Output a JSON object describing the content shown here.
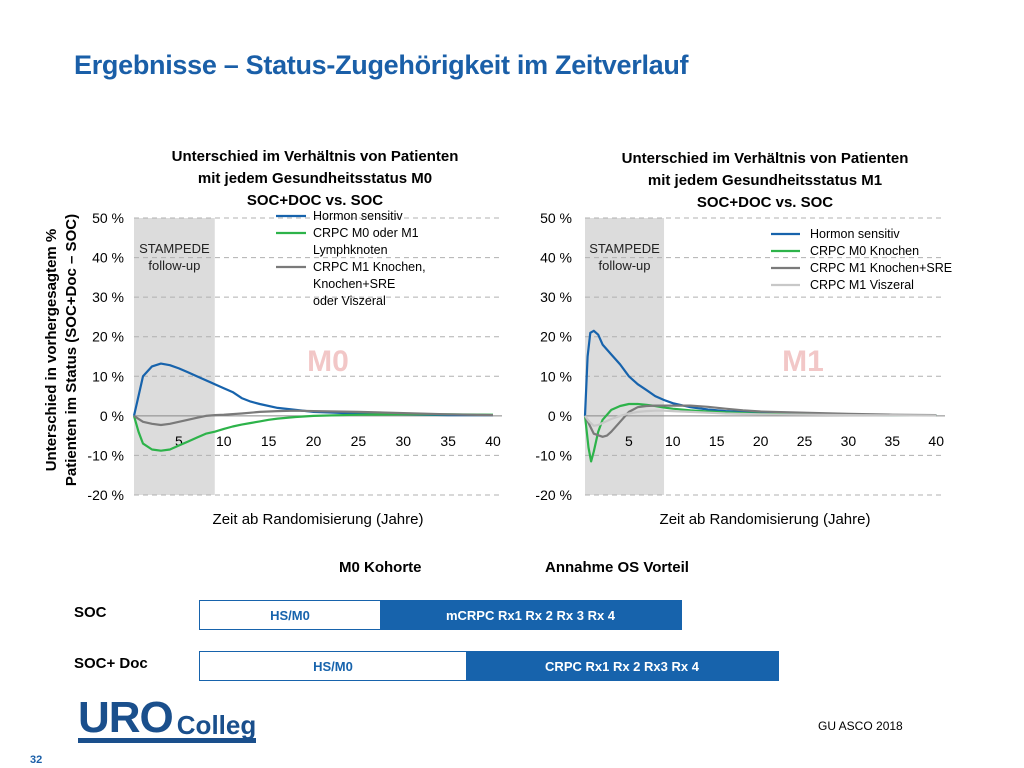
{
  "slide": {
    "title": "Ergebnisse – Status-Zugehörigkeit im Zeitverlauf",
    "y_axis_label_line1": "Unterschied in vorhergesagtem %",
    "y_axis_label_line2": "Patienten im Status (SOC+Doc – SOC)",
    "source": "GU ASCO 2018",
    "page_number": "32",
    "logo": {
      "part1": "URO",
      "part2": "Colleg"
    }
  },
  "colors": {
    "title": "#1a5fa8",
    "hormon": "#1763ac",
    "crpc_m0": "#2db34a",
    "crpc_m1": "#7a7a7a",
    "crpc_m1_visz": "#c8c8c8",
    "watermark": "#f2c7c7",
    "shade": "#dcdcdc",
    "bar_dark": "#1763ac"
  },
  "chart_data": [
    {
      "type": "line",
      "title_lines": [
        "Unterschied im Verhältnis von Patienten",
        "mit jedem Gesundheitsstatus M0",
        "SOC+DOC vs. SOC"
      ],
      "watermark": "M0",
      "shaded_region": {
        "x": [
          0,
          9
        ],
        "label_lines": [
          "STAMPEDE",
          "follow-up"
        ]
      },
      "xlabel": "Zeit ab Randomisierung (Jahre)",
      "xlim": [
        0,
        41
      ],
      "ylim": [
        -20,
        50
      ],
      "xticks": [
        "5",
        "10",
        "15",
        "20",
        "25",
        "30",
        "35",
        "40"
      ],
      "xtick_values": [
        5,
        10,
        15,
        20,
        25,
        30,
        35,
        40
      ],
      "yticks": [
        "50 %",
        "40 %",
        "30 %",
        "20 %",
        "10 %",
        "0 %",
        "-10 %",
        "-20 %"
      ],
      "ytick_values": [
        50,
        40,
        30,
        20,
        10,
        0,
        -10,
        -20
      ],
      "legend_lines": [
        "Hormon sensitiv",
        "CRPC M0 oder M1",
        "Lymphknoten",
        "CRPC M1 Knochen,",
        "Knochen+SRE",
        "oder Viszeral"
      ],
      "series": [
        {
          "name": "Hormon sensitiv",
          "color_key": "hormon",
          "x": [
            0,
            1,
            2,
            3,
            4,
            5,
            6,
            7,
            8,
            9,
            10,
            11,
            12,
            13,
            14,
            16,
            18,
            20,
            25,
            30,
            35,
            40
          ],
          "y": [
            0,
            10,
            12.5,
            13.2,
            12.8,
            12,
            11,
            10,
            9,
            8,
            7,
            6,
            4.5,
            3.6,
            3,
            2,
            1.5,
            1,
            0.6,
            0.4,
            0.2,
            0.2
          ]
        },
        {
          "name": "CRPC M0 oder M1 Lymphknoten",
          "color_key": "crpc_m0",
          "x": [
            0,
            0.5,
            1,
            2,
            3,
            4,
            5,
            6,
            7,
            8,
            9,
            10,
            11,
            12,
            13,
            14,
            15,
            16,
            18,
            20,
            25,
            30,
            35,
            40
          ],
          "y": [
            0,
            -4,
            -7,
            -8.5,
            -8.8,
            -8.5,
            -7.5,
            -6.5,
            -5.5,
            -4.5,
            -4,
            -3.3,
            -2.7,
            -2.2,
            -1.8,
            -1.4,
            -1,
            -0.7,
            -0.3,
            0,
            0.3,
            0.4,
            0.4,
            0.3
          ]
        },
        {
          "name": "CRPC M1 Knochen, Knochen+SRE oder Viszeral",
          "color_key": "crpc_m1",
          "x": [
            0,
            1,
            2,
            3,
            4,
            5,
            6,
            7,
            8,
            9,
            10,
            12,
            14,
            16,
            18,
            20,
            25,
            30,
            35,
            40
          ],
          "y": [
            0,
            -1.5,
            -2,
            -2.3,
            -2,
            -1.5,
            -1,
            -0.5,
            0,
            0.2,
            0.3,
            0.6,
            1,
            1.2,
            1.3,
            1.2,
            1,
            0.7,
            0.4,
            0.2
          ]
        }
      ]
    },
    {
      "type": "line",
      "title_lines": [
        "Unterschied im Verhältnis von Patienten",
        "mit jedem Gesundheitsstatus M1",
        "SOC+DOC vs. SOC"
      ],
      "watermark": "M1",
      "shaded_region": {
        "x": [
          0,
          9
        ],
        "label_lines": [
          "STAMPEDE",
          "follow-up"
        ]
      },
      "xlabel": "Zeit ab Randomisierung (Jahre)",
      "xlim": [
        0,
        41
      ],
      "ylim": [
        -20,
        50
      ],
      "xticks": [
        "5",
        "10",
        "15",
        "20",
        "25",
        "30",
        "35",
        "40"
      ],
      "xtick_values": [
        5,
        10,
        15,
        20,
        25,
        30,
        35,
        40
      ],
      "yticks": [
        "50 %",
        "40 %",
        "30 %",
        "20 %",
        "10 %",
        "0 %",
        "-10 %",
        "-20 %"
      ],
      "ytick_values": [
        50,
        40,
        30,
        20,
        10,
        0,
        -10,
        -20
      ],
      "legend_lines": [
        "Hormon sensitiv",
        "CRPC M0 Knochen",
        "CRPC M1 Knochen+SRE",
        "CRPC M1 Viszeral"
      ],
      "series": [
        {
          "name": "Hormon sensitiv",
          "color_key": "hormon",
          "x": [
            0,
            0.3,
            0.6,
            1,
            1.5,
            2,
            3,
            4,
            5,
            6,
            7,
            8,
            9,
            10,
            12,
            14,
            16,
            18,
            20,
            25,
            30,
            35,
            40
          ],
          "y": [
            0,
            15,
            21,
            21.5,
            20.5,
            18,
            15.5,
            13,
            10,
            8,
            6.5,
            5,
            4,
            3.2,
            2.2,
            1.6,
            1.2,
            1,
            0.8,
            0.5,
            0.3,
            0.2,
            0.2
          ]
        },
        {
          "name": "CRPC M0 Knochen",
          "color_key": "crpc_m0",
          "x": [
            0,
            0.4,
            0.7,
            1,
            1.5,
            2,
            3,
            4,
            5,
            6,
            7,
            8,
            9,
            10,
            12,
            14,
            16,
            18,
            20,
            25,
            30,
            35,
            40
          ],
          "y": [
            0,
            -8,
            -11.5,
            -9,
            -4,
            -1,
            1.5,
            2.5,
            3,
            3,
            2.8,
            2.5,
            2.1,
            1.8,
            1.4,
            1.1,
            0.9,
            0.7,
            0.5,
            0.4,
            0.3,
            0.2,
            0.2
          ]
        },
        {
          "name": "CRPC M1 Knochen+SRE",
          "color_key": "crpc_m1",
          "x": [
            0,
            1,
            2,
            2.5,
            3,
            4,
            5,
            6,
            7,
            8,
            9,
            10,
            12,
            14,
            16,
            18,
            20,
            25,
            30,
            35,
            40
          ],
          "y": [
            0,
            -4.5,
            -5.3,
            -5,
            -4,
            -1.5,
            1,
            2.2,
            2.5,
            2.6,
            2.6,
            2.6,
            2.6,
            2.3,
            1.8,
            1.4,
            1.1,
            0.8,
            0.5,
            0.3,
            0.2
          ]
        },
        {
          "name": "CRPC M1 Viszeral",
          "color_key": "crpc_m1_visz",
          "x": [
            0,
            0.5,
            1,
            1.5,
            2,
            3,
            4,
            5,
            6,
            7,
            8,
            9,
            10,
            12,
            14,
            16,
            20,
            25,
            30,
            40
          ],
          "y": [
            0,
            -1.5,
            -2.5,
            -2.3,
            -1.8,
            -0.8,
            0,
            0.6,
            1,
            1.2,
            1.3,
            1.3,
            1.2,
            1,
            0.8,
            0.6,
            0.4,
            0.3,
            0.2,
            0.1
          ]
        }
      ]
    }
  ],
  "bottom": {
    "header_m0": "M0 Kohorte",
    "header_os": "Annahme OS Vorteil",
    "row_soc_label": "SOC",
    "row_socdoc_label": "SOC+ Doc",
    "soc_bar": {
      "light": "HS/M0",
      "dark": "mCRPC Rx1 Rx 2 Rx 3 Rx 4"
    },
    "socdoc_bar": {
      "light": "HS/M0",
      "dark": "CRPC Rx1 Rx 2 Rx3 Rx 4"
    }
  }
}
